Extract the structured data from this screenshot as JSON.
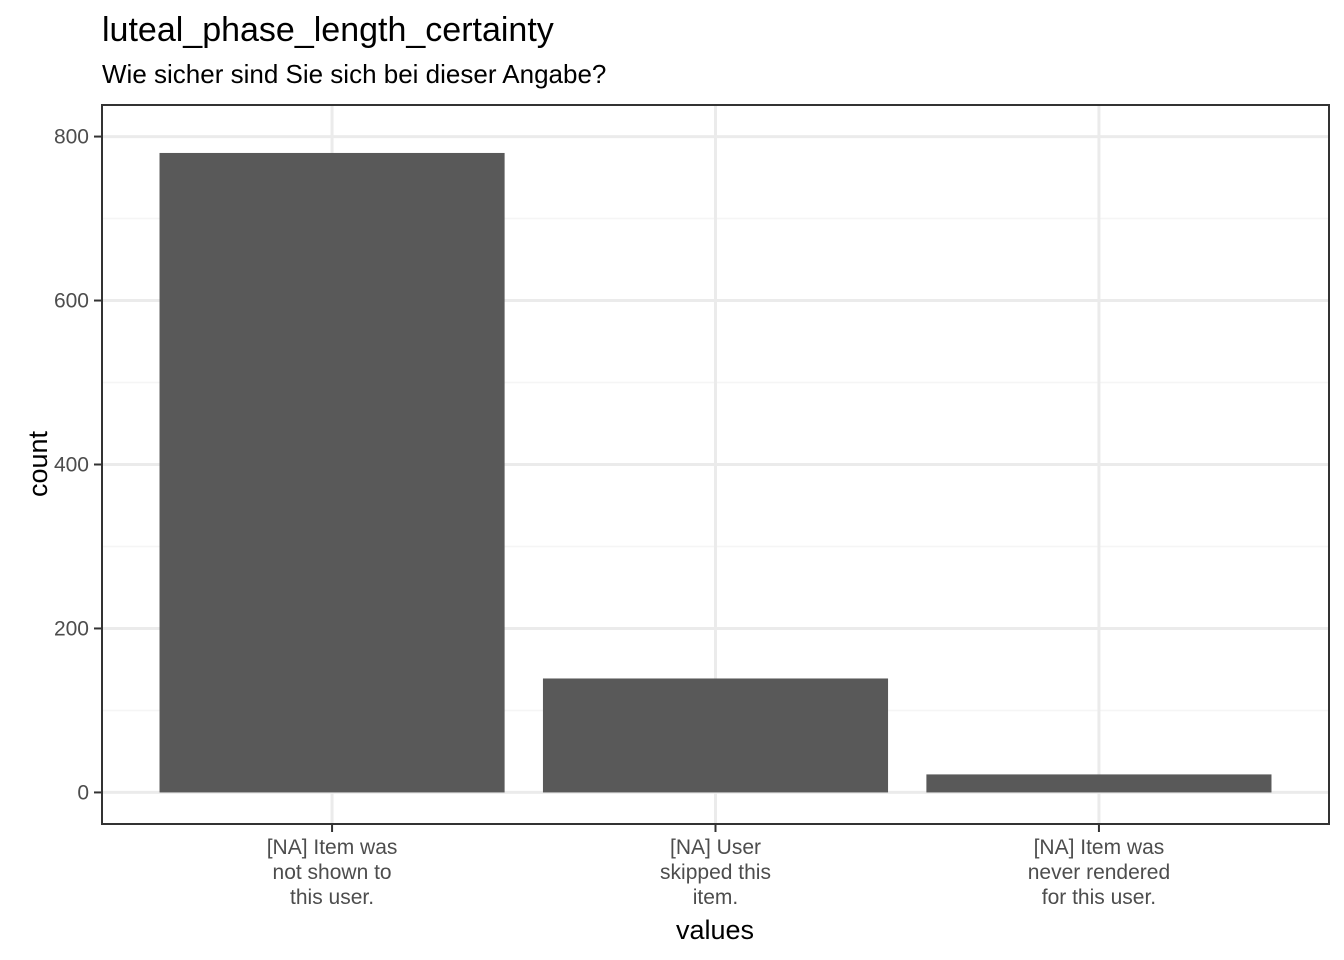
{
  "chart_data": {
    "type": "bar",
    "title": "luteal_phase_length_certainty",
    "subtitle": "Wie sicher sind Sie sich bei dieser Angabe?",
    "xlabel": "values",
    "ylabel": "count",
    "categories": [
      [
        "[NA] Item was",
        "not shown to",
        "this user."
      ],
      [
        "[NA] User",
        "skipped this",
        "item."
      ],
      [
        "[NA] Item was",
        "never rendered",
        "for this user."
      ]
    ],
    "values": [
      780,
      139,
      22
    ],
    "ylim": [
      -38.5,
      838.5
    ],
    "yticks": [
      0,
      200,
      400,
      600,
      800
    ],
    "grid": true,
    "colors": {
      "bar": "#595959",
      "grid_major": "#ebebeb",
      "grid_minor": "#f5f5f5",
      "panel_border": "#333333"
    }
  }
}
